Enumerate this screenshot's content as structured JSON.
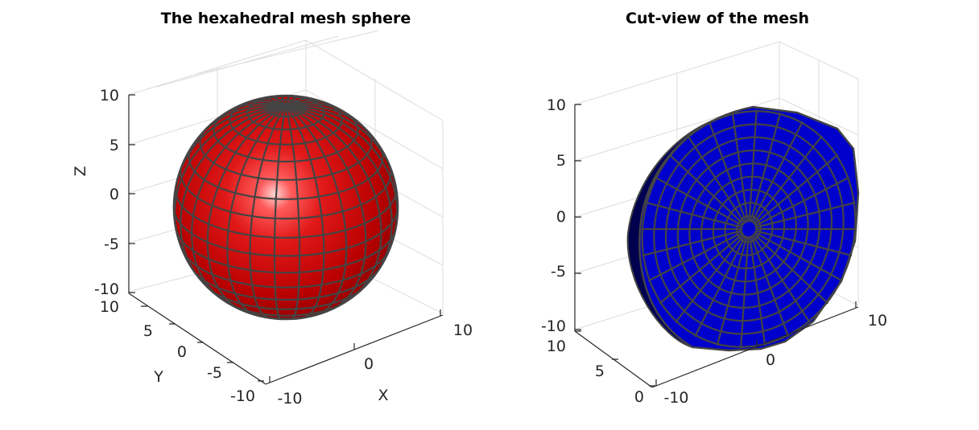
{
  "chart_data": [
    {
      "type": "surface3d",
      "title": "The hexahedral mesh sphere",
      "xlabel": "X",
      "ylabel": "Y",
      "zlabel": "Z",
      "xlim": [
        -10,
        10
      ],
      "ylim": [
        -10,
        10
      ],
      "zlim": [
        -10,
        10
      ],
      "x_ticks": [
        "-10",
        "0",
        "10"
      ],
      "y_ticks": [
        "-10",
        "-5",
        "0",
        "5",
        "10"
      ],
      "z_ticks": [
        "-10",
        "-5",
        "0",
        "5",
        "10"
      ],
      "shape": "sphere",
      "radius": 10,
      "face_color": "#cc0000",
      "edge_color": "#444444",
      "grid": true
    },
    {
      "type": "surface3d",
      "title": "Cut-view of the mesh",
      "xlabel": "",
      "ylabel": "",
      "zlabel": "",
      "xlim": [
        -10,
        10
      ],
      "ylim": [
        0,
        10
      ],
      "zlim": [
        -10,
        10
      ],
      "x_ticks": [
        "-10",
        "0",
        "10"
      ],
      "y_ticks": [
        "0",
        "5",
        "10"
      ],
      "z_ticks": [
        "-10",
        "-5",
        "0",
        "5",
        "10"
      ],
      "shape": "half-sphere",
      "radius": 10,
      "face_color": "#0000cc",
      "edge_color": "#444444",
      "grid": true
    }
  ]
}
